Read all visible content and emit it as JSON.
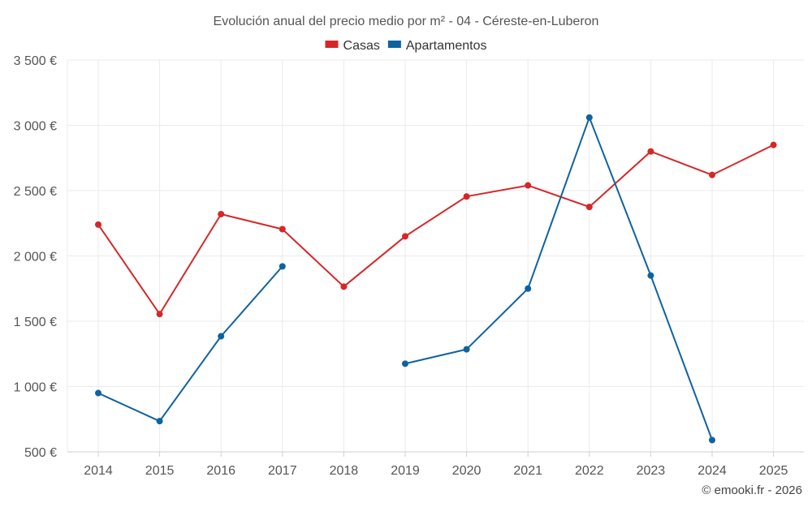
{
  "chart_data": {
    "type": "line",
    "title": "Evolución anual del precio medio por m² - 04 - Céreste-en-Luberon",
    "categories": [
      "2014",
      "2015",
      "2016",
      "2017",
      "2018",
      "2019",
      "2020",
      "2021",
      "2022",
      "2023",
      "2024",
      "2025"
    ],
    "series": [
      {
        "name": "Casas",
        "color": "#d62728",
        "values": [
          2240,
          1555,
          2320,
          2205,
          1765,
          2150,
          2455,
          2540,
          2375,
          2800,
          2620,
          2850
        ]
      },
      {
        "name": "Apartamentos",
        "color": "#0f62a0",
        "values": [
          950,
          735,
          1385,
          1920,
          null,
          1175,
          1285,
          1750,
          3060,
          1850,
          590,
          null
        ]
      }
    ],
    "y_ticks": [
      500,
      1000,
      1500,
      2000,
      2500,
      3000,
      3500
    ],
    "y_tick_labels": [
      "500 €",
      "1 000 €",
      "1 500 €",
      "2 000 €",
      "2 500 €",
      "3 000 €",
      "3 500 €"
    ],
    "ylim": [
      500,
      3500
    ],
    "xlabel": "",
    "ylabel": "",
    "grid": true,
    "legend_position": "top-center",
    "credit": "© emooki.fr - 2026"
  }
}
